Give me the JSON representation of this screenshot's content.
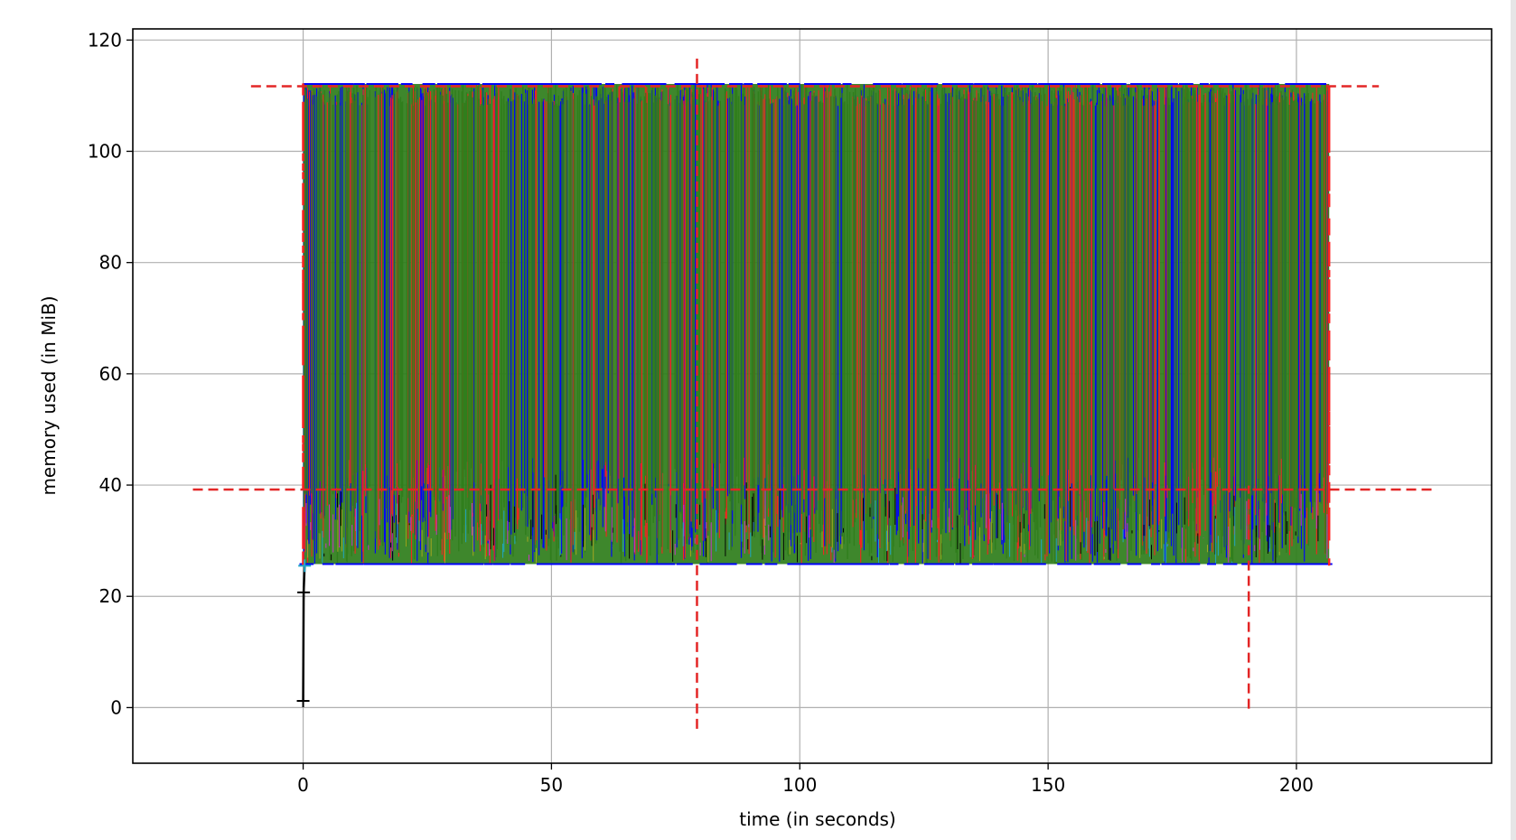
{
  "chart_data": {
    "type": "line",
    "title": "",
    "xlabel": "time (in seconds)",
    "ylabel": "memory used (in MiB)",
    "xlim": [
      -34.3,
      239.3
    ],
    "ylim": [
      -10,
      122
    ],
    "xticks": [
      0,
      50,
      100,
      150,
      200
    ],
    "yticks": [
      0,
      20,
      40,
      60,
      80,
      100,
      120
    ],
    "grid": true,
    "legend": "none",
    "colors": {
      "blue": "#0000ff",
      "red": "#ff1f1f",
      "green": "#2e7d1a",
      "black": "#000000",
      "magenta": "#cc33cc",
      "cyan": "#1fa8c9",
      "olive": "#a8a820",
      "reference": "#e32626"
    },
    "time_range": [
      0,
      206.6
    ],
    "memory_range": [
      25.8,
      112.1
    ],
    "startup_trace": [
      {
        "x": 0.0,
        "y": 1.2
      },
      {
        "x": 0.1,
        "y": 20.7
      },
      {
        "x": 0.3,
        "y": 25.5
      }
    ],
    "reference_lines": {
      "horizontal": [
        {
          "y": 111.7,
          "xmin": -10.5,
          "xmax": 216.6
        },
        {
          "y": 39.2,
          "xmin": -22.2,
          "xmax": 228.3
        }
      ],
      "vertical": [
        {
          "x": 79.3,
          "ymin": -3.8,
          "ymax": 117.6
        },
        {
          "x": 190.4,
          "ymin": -0.2,
          "ymax": 39.9
        }
      ]
    }
  }
}
